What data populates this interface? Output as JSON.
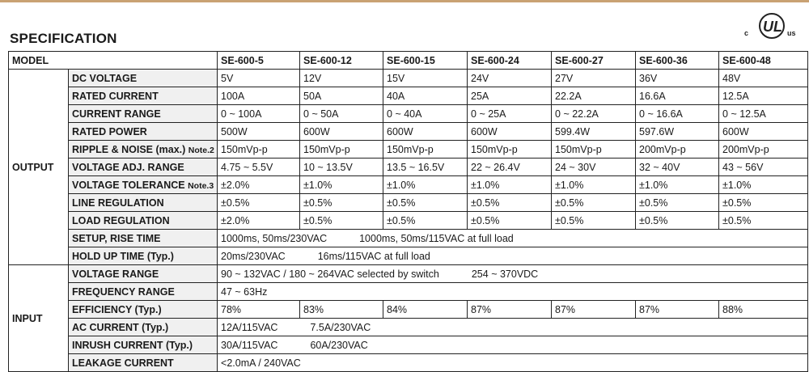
{
  "title": "SPECIFICATION",
  "logo": {
    "c": "c",
    "ul": "UL",
    "us": "us"
  },
  "model_label": "MODEL",
  "models": [
    "SE-600-5",
    "SE-600-12",
    "SE-600-15",
    "SE-600-24",
    "SE-600-27",
    "SE-600-36",
    "SE-600-48"
  ],
  "output": {
    "group_label": "OUTPUT",
    "rows": [
      {
        "label": "DC VOLTAGE",
        "note": "",
        "values": [
          "5V",
          "12V",
          "15V",
          "24V",
          "27V",
          "36V",
          "48V"
        ]
      },
      {
        "label": "RATED CURRENT",
        "note": "",
        "values": [
          "100A",
          "50A",
          "40A",
          "25A",
          "22.2A",
          "16.6A",
          "12.5A"
        ]
      },
      {
        "label": "CURRENT RANGE",
        "note": "",
        "values": [
          "0 ~ 100A",
          "0 ~ 50A",
          "0 ~ 40A",
          "0 ~ 25A",
          "0 ~ 22.2A",
          "0 ~ 16.6A",
          "0 ~ 12.5A"
        ]
      },
      {
        "label": "RATED POWER",
        "note": "",
        "values": [
          "500W",
          "600W",
          "600W",
          "600W",
          "599.4W",
          "597.6W",
          "600W"
        ]
      },
      {
        "label": "RIPPLE & NOISE (max.)",
        "note": "Note.2",
        "values": [
          "150mVp-p",
          "150mVp-p",
          "150mVp-p",
          "150mVp-p",
          "150mVp-p",
          "200mVp-p",
          "200mVp-p"
        ]
      },
      {
        "label": "VOLTAGE ADJ. RANGE",
        "note": "",
        "values": [
          "4.75 ~ 5.5V",
          "10 ~ 13.5V",
          "13.5 ~ 16.5V",
          "22 ~ 26.4V",
          "24 ~ 30V",
          "32 ~ 40V",
          "43 ~ 56V"
        ]
      },
      {
        "label": "VOLTAGE TOLERANCE",
        "note": "Note.3",
        "values": [
          "±2.0%",
          "±1.0%",
          "±1.0%",
          "±1.0%",
          "±1.0%",
          "±1.0%",
          "±1.0%"
        ]
      },
      {
        "label": "LINE REGULATION",
        "note": "",
        "values": [
          "±0.5%",
          "±0.5%",
          "±0.5%",
          "±0.5%",
          "±0.5%",
          "±0.5%",
          "±0.5%"
        ]
      },
      {
        "label": "LOAD REGULATION",
        "note": "",
        "values": [
          "±2.0%",
          "±0.5%",
          "±0.5%",
          "±0.5%",
          "±0.5%",
          "±0.5%",
          "±0.5%"
        ]
      }
    ],
    "setup_rise": {
      "label": "SETUP, RISE TIME",
      "part1": "1000ms, 50ms/230VAC",
      "part2": "1000ms, 50ms/115VAC at full load"
    },
    "hold_up": {
      "label": "HOLD UP TIME (Typ.)",
      "part1": "20ms/230VAC",
      "part2": "16ms/115VAC at full load"
    }
  },
  "input": {
    "group_label": "INPUT",
    "voltage_range": {
      "label": "VOLTAGE RANGE",
      "part1": "90 ~ 132VAC / 180 ~ 264VAC selected by switch",
      "part2": "254 ~ 370VDC"
    },
    "frequency_range": {
      "label": "FREQUENCY RANGE",
      "value": "47 ~ 63Hz"
    },
    "efficiency": {
      "label": "EFFICIENCY (Typ.)",
      "values": [
        "78%",
        "83%",
        "84%",
        "87%",
        "87%",
        "87%",
        "88%"
      ]
    },
    "ac_current": {
      "label": "AC CURRENT (Typ.)",
      "part1": "12A/115VAC",
      "part2": "7.5A/230VAC"
    },
    "inrush_current": {
      "label": "INRUSH CURRENT (Typ.)",
      "part1": "30A/115VAC",
      "part2": "60A/230VAC"
    },
    "leakage_current": {
      "label": "LEAKAGE CURRENT",
      "value": "<2.0mA / 240VAC"
    }
  }
}
